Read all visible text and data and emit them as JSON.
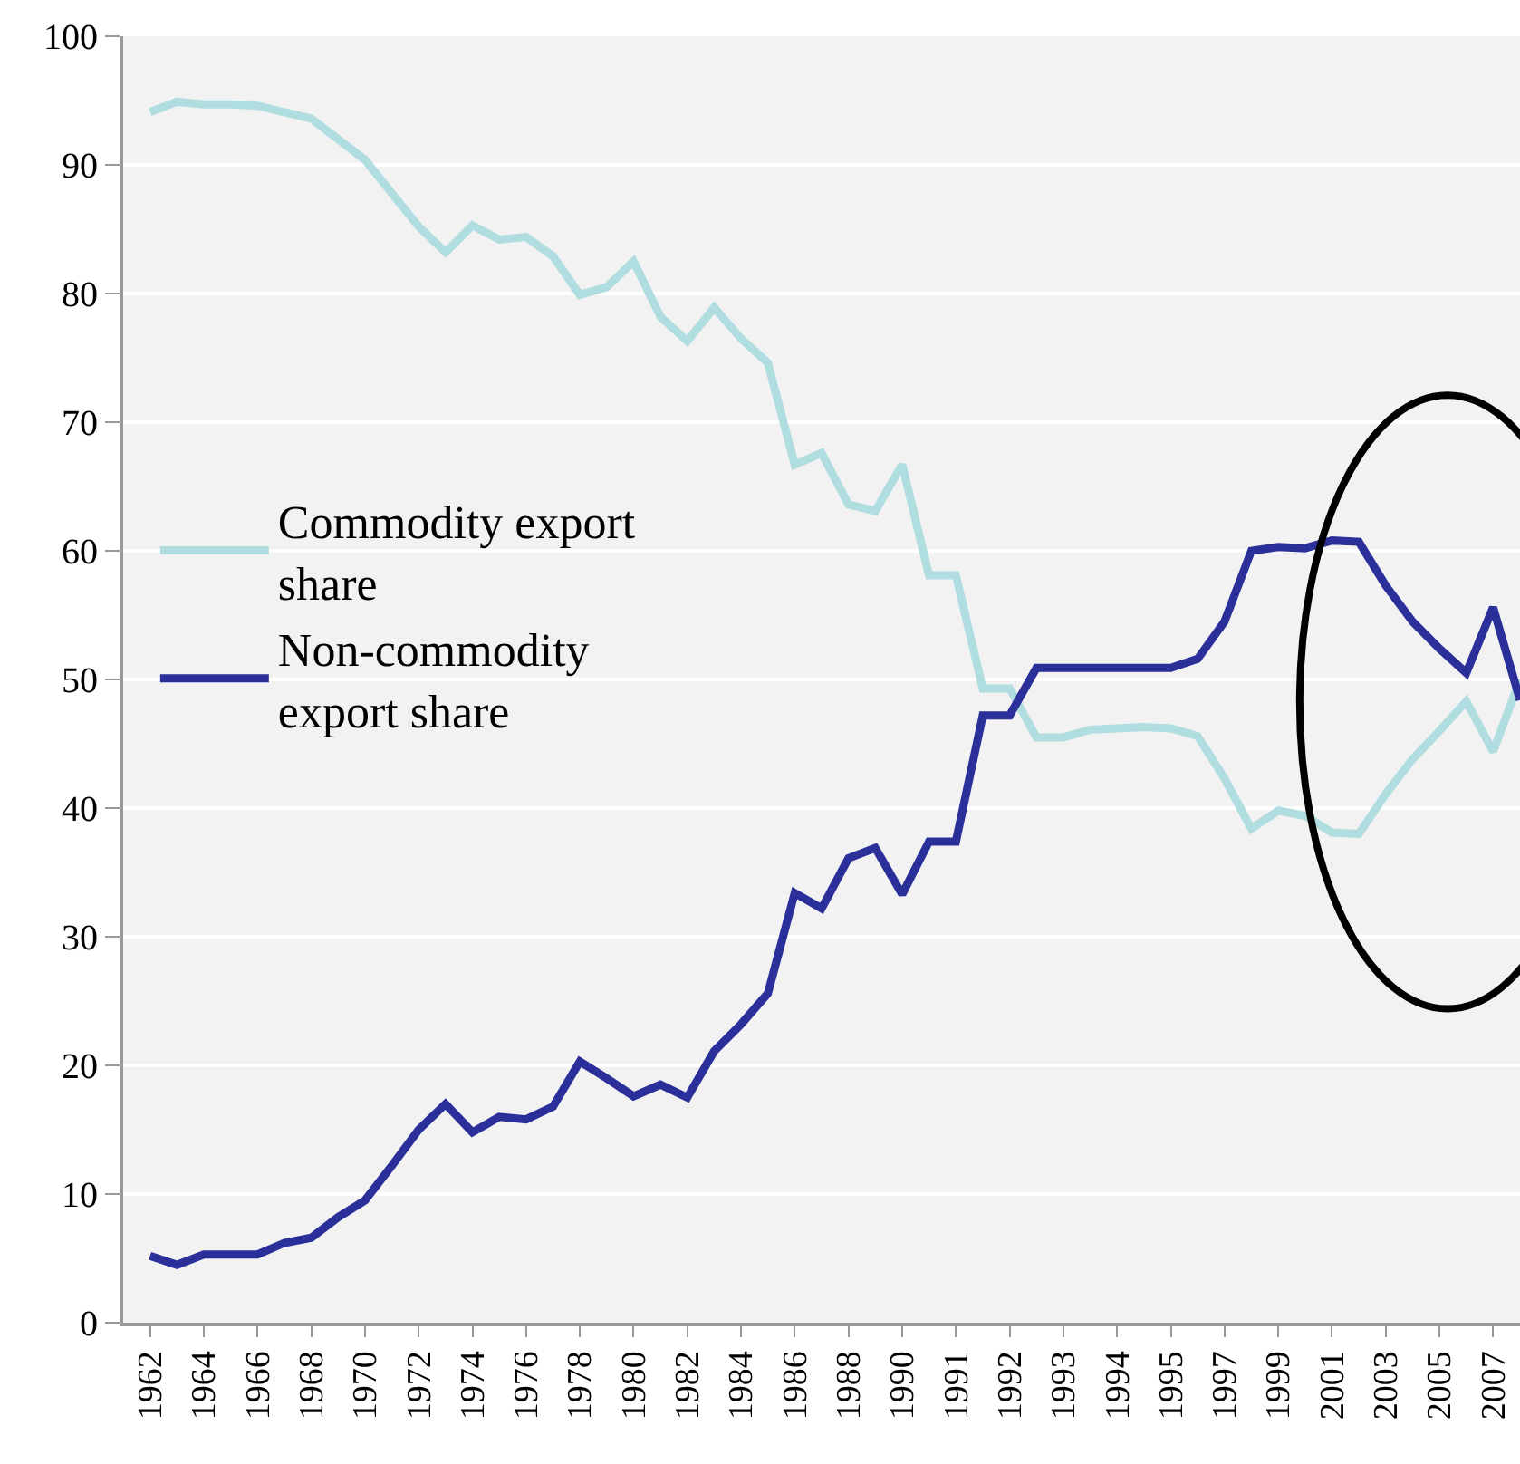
{
  "chart_data": {
    "type": "line",
    "categories": [
      "1962",
      null,
      "1964",
      null,
      "1966",
      null,
      "1968",
      null,
      "1970",
      null,
      "1972",
      null,
      "1974",
      null,
      "1976",
      null,
      "1978",
      null,
      "1980",
      null,
      "1982",
      null,
      "1984",
      null,
      "1986",
      null,
      "1988",
      null,
      "1990",
      null,
      "1991",
      null,
      "1992",
      null,
      "1993",
      null,
      "1994",
      null,
      "1995",
      null,
      "1997",
      null,
      "1999",
      null,
      "2001",
      null,
      "2003",
      null,
      "2005",
      null,
      "2007",
      null
    ],
    "series": [
      {
        "name": "Commodity export share",
        "color": "#b0dde0",
        "values": [
          94.1,
          94.9,
          94.7,
          94.7,
          94.6,
          94.1,
          93.6,
          92.0,
          90.4,
          87.8,
          85.2,
          83.2,
          85.3,
          84.2,
          84.4,
          82.9,
          79.9,
          80.5,
          82.5,
          78.2,
          76.3,
          78.9,
          76.5,
          74.6,
          66.7,
          67.6,
          63.6,
          63.1,
          66.7,
          58.1,
          58.1,
          49.3,
          49.3,
          45.5,
          45.5,
          46.1,
          46.2,
          46.3,
          46.2,
          45.6,
          42.3,
          38.4,
          39.8,
          39.4,
          38.1,
          38.0,
          41.1,
          43.8,
          46.0,
          48.3,
          44.4,
          50.0
        ]
      },
      {
        "name": "Non-commodity export share",
        "color": "#2b2f9a",
        "values": [
          5.2,
          4.5,
          5.3,
          5.3,
          5.3,
          6.2,
          6.6,
          8.2,
          9.5,
          12.2,
          15.0,
          17.0,
          14.8,
          16.0,
          15.8,
          16.8,
          20.3,
          19.0,
          17.6,
          18.5,
          17.5,
          21.1,
          23.2,
          25.6,
          33.4,
          32.2,
          36.1,
          36.9,
          33.3,
          37.4,
          37.4,
          47.2,
          47.2,
          50.9,
          50.9,
          50.9,
          50.9,
          50.9,
          50.9,
          51.6,
          54.5,
          60.0,
          60.3,
          60.2,
          60.8,
          60.7,
          57.3,
          54.5,
          52.4,
          50.5,
          55.6,
          48.4
        ]
      }
    ],
    "ylim": [
      0,
      100
    ],
    "yticks": [
      0,
      10,
      20,
      30,
      40,
      50,
      60,
      70,
      80,
      90,
      100
    ],
    "grid": "y",
    "legend": "left",
    "marker": "none",
    "line_style": "solid"
  }
}
